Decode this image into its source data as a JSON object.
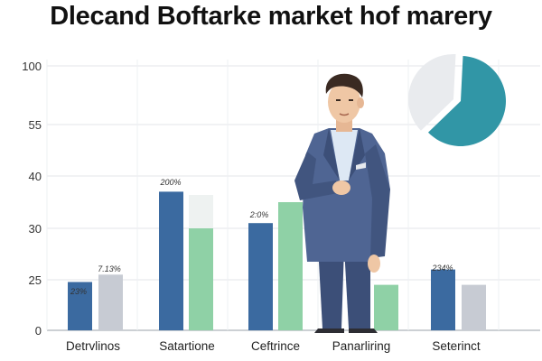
{
  "chart_data": {
    "type": "bar",
    "title": "Dlecand Boftarke market hof marery",
    "xlabel": "",
    "ylabel": "",
    "y_ticks": [
      "100",
      "55",
      "40",
      "30",
      "25",
      "0"
    ],
    "categories": [
      "Detrvlinos",
      "Satartione",
      "Ceftrince",
      "Panarliring",
      "Seterinct"
    ],
    "series": [
      {
        "color": "#3b6aa0",
        "values": [
          23.9,
          37,
          31,
          null,
          26
        ]
      },
      {
        "color": "#8fd1a6",
        "values": [
          null,
          30,
          35,
          22.5,
          null
        ]
      },
      {
        "color": "#c7cbd3",
        "values": [
          25.5,
          null,
          null,
          null,
          22.5
        ]
      }
    ],
    "data_labels": [
      {
        "category": 0,
        "text": "23%"
      },
      {
        "category": 0,
        "text": "7.13%"
      },
      {
        "category": 1,
        "text": "200%"
      },
      {
        "category": 2,
        "text": "2:0%"
      },
      {
        "category": 4,
        "text": "234%"
      }
    ],
    "pie": {
      "values": [
        0.62,
        0.38
      ],
      "colors": [
        "#3196a6",
        "#e9ebee"
      ]
    },
    "grid": true,
    "legend": "none"
  },
  "colors": {
    "suit": "#4f6593",
    "suit_dark": "#3c4f78",
    "shirt": "#dde8f4",
    "skin": "#efc7a5",
    "hair": "#3a2a22",
    "shoes": "#2d2d33"
  }
}
